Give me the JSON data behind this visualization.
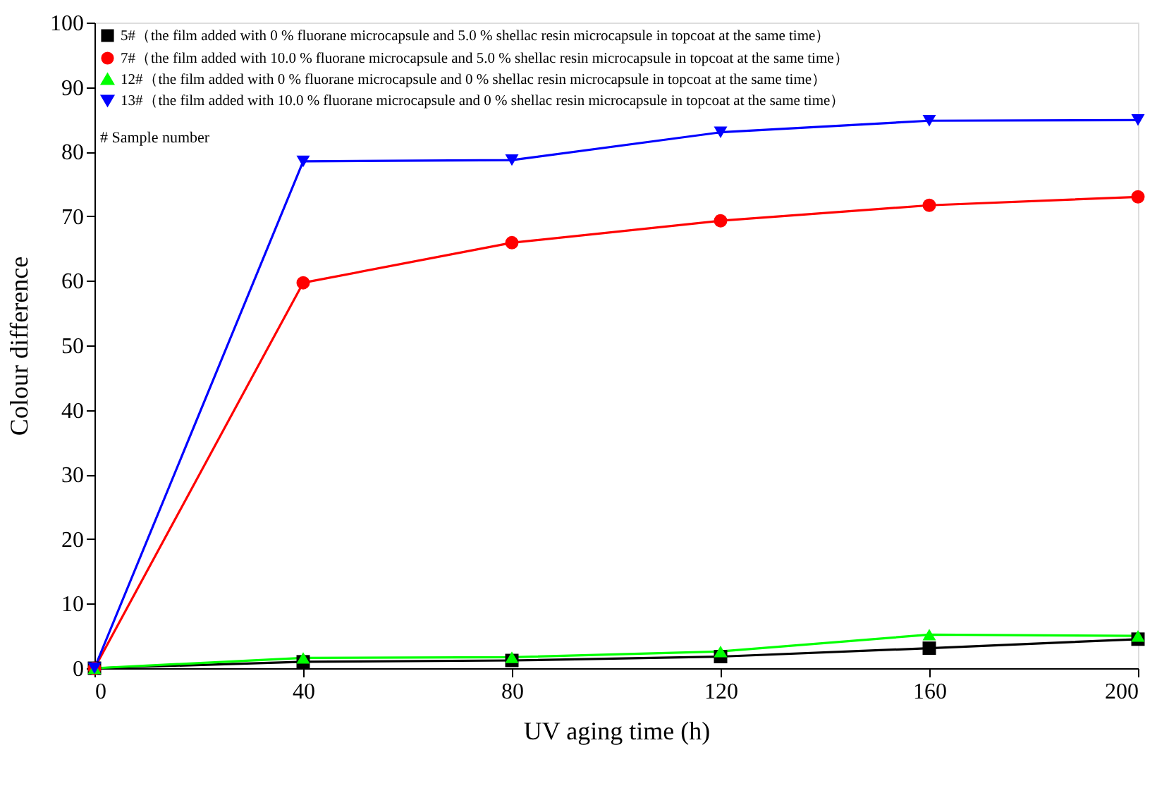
{
  "chart_data": {
    "type": "line",
    "xlabel": "UV aging time  (h)",
    "ylabel": "Colour difference",
    "x": [
      0,
      40,
      80,
      120,
      160,
      200
    ],
    "series": [
      {
        "name": "5#（the film added with 0 % fluorane microcapsule and 5.0 % shellac resin microcapsule in topcoat at the same time）",
        "color": "#000000",
        "marker": "square",
        "values": [
          0,
          1.0,
          1.2,
          1.8,
          3.1,
          4.5
        ]
      },
      {
        "name": "7#（the film added with 10.0 % fluorane microcapsule and 5.0 % shellac resin microcapsule in topcoat at the same time）",
        "color": "#ff0000",
        "marker": "circle",
        "values": [
          0,
          59.7,
          65.9,
          69.3,
          71.7,
          73.0
        ]
      },
      {
        "name": "12#（the film added with 0 % fluorane microcapsule and 0 % shellac resin microcapsule in topcoat at the same time）",
        "color": "#00ff00",
        "marker": "triangle",
        "values": [
          0,
          1.6,
          1.7,
          2.6,
          5.2,
          5.0
        ]
      },
      {
        "name": "13#（the film added with 10.0 % fluorane microcapsule and 0 % shellac resin microcapsule in topcoat at the same time）",
        "color": "#0000ff",
        "marker": "triangle-down",
        "values": [
          0,
          78.5,
          78.7,
          83.0,
          84.8,
          84.9
        ]
      }
    ],
    "xlim": [
      0,
      200
    ],
    "xticks": [
      0,
      40,
      80,
      120,
      160,
      200
    ],
    "ylim": [
      0,
      100
    ],
    "yticks": [
      0,
      10,
      20,
      30,
      40,
      50,
      60,
      70,
      80,
      90,
      100
    ],
    "grid": false,
    "legend": "top left",
    "line_style": "solid",
    "annotations": [
      "# Sample number"
    ]
  }
}
